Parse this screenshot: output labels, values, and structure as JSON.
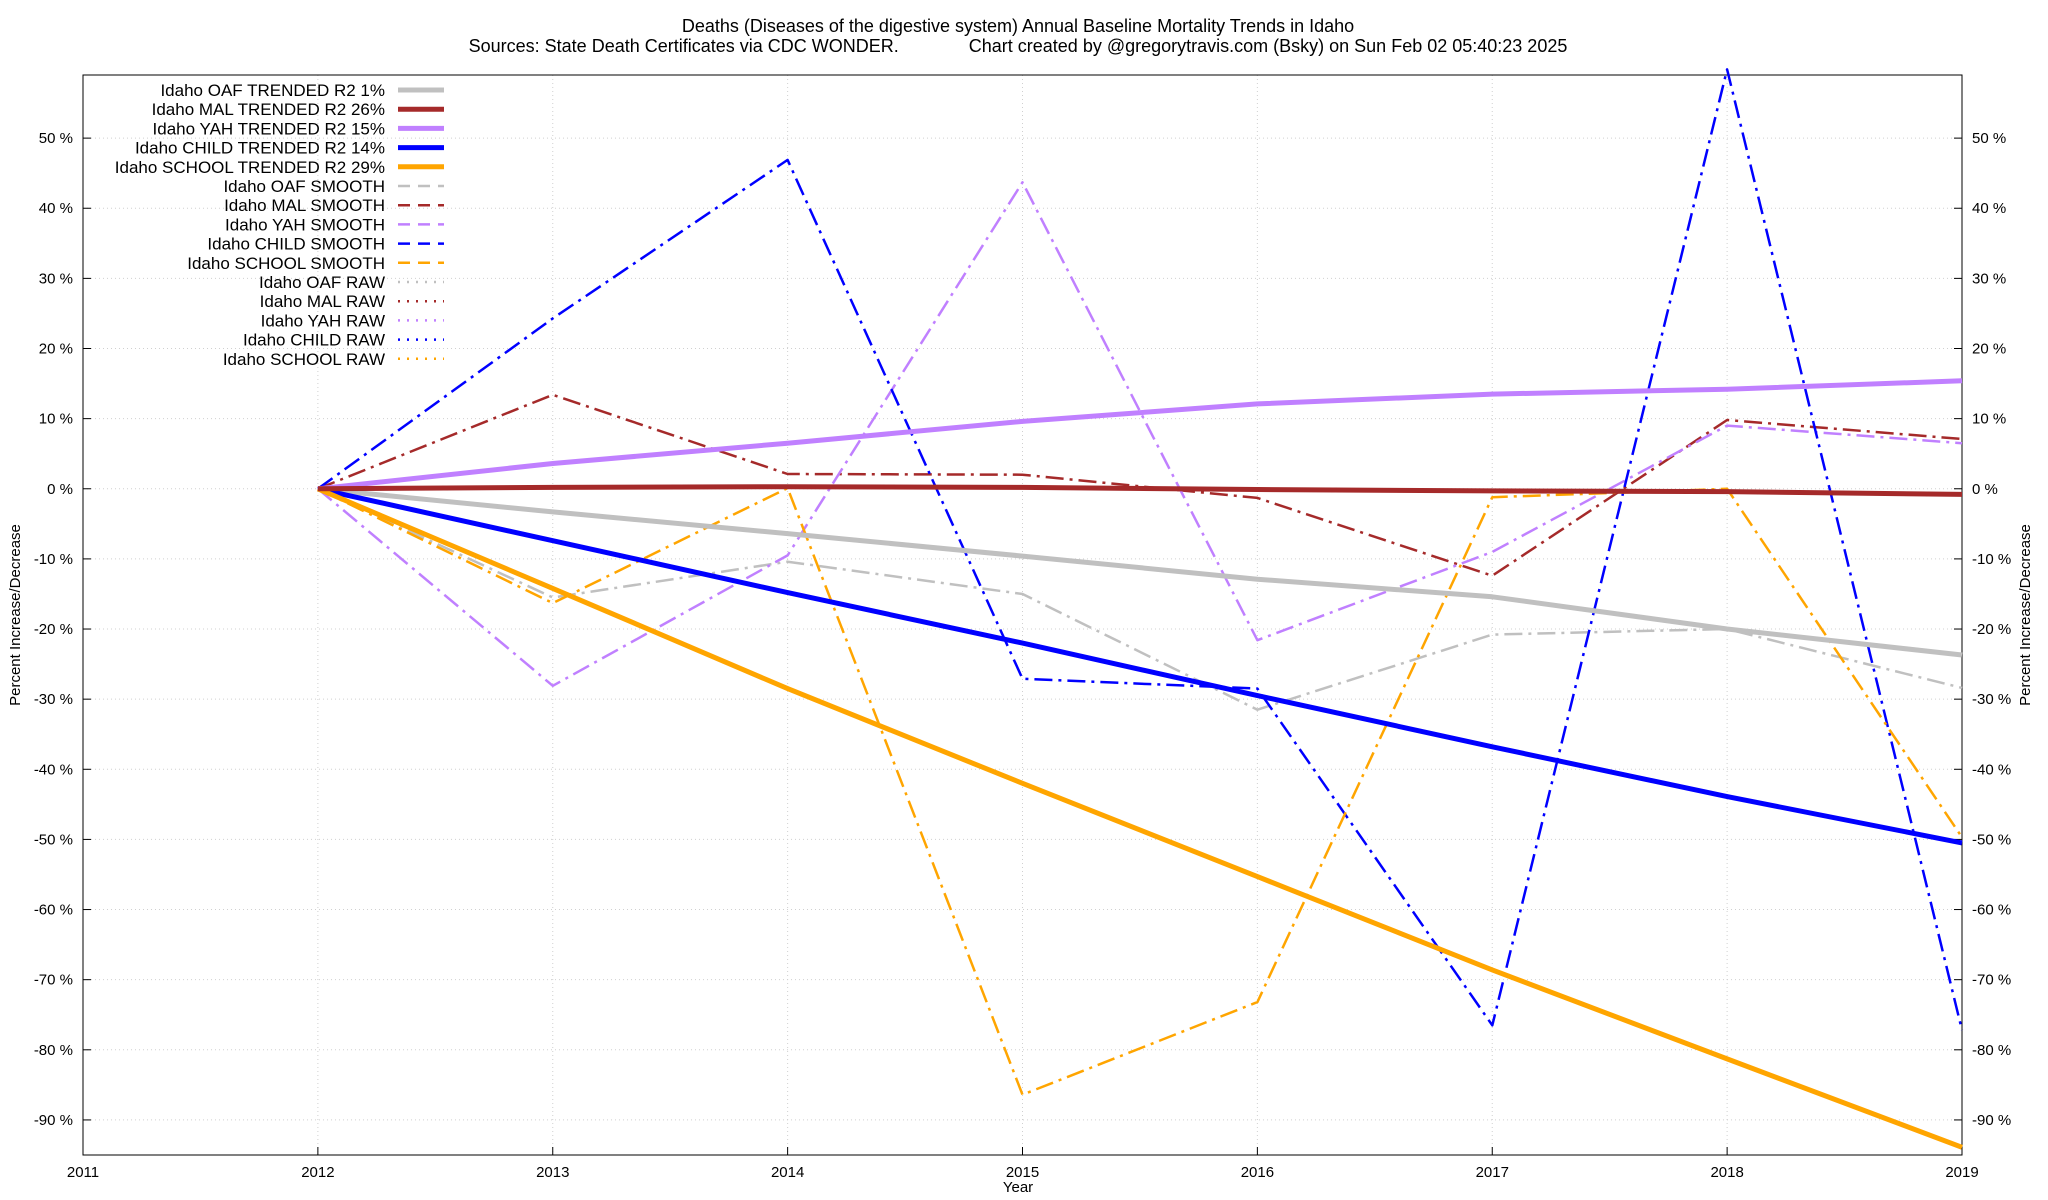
{
  "chart_data": {
    "type": "line",
    "title": "Deaths (Diseases of the digestive system)  Annual Baseline Mortality Trends in Idaho",
    "subtitle": "Sources: State Death Certificates via CDC WONDER.              Chart created by @gregorytravis.com (Bsky) on Sun Feb 02 05:40:23 2025",
    "xlabel": "Year",
    "ylabel": "Percent Increase/Decrease",
    "y2label": "Percent Increase/Decrease",
    "xlim": [
      2011,
      2019
    ],
    "ylim": [
      -95,
      59
    ],
    "x_ticks": [
      "2011",
      "2012",
      "2013",
      "2014",
      "2015",
      "2016",
      "2017",
      "2018",
      "2019"
    ],
    "y_ticks": [
      "50 %",
      "40 %",
      "30 %",
      "20 %",
      "10 %",
      "0 %",
      "-10 %",
      "-20 %",
      "-30 %",
      "-40 %",
      "-50 %",
      "-60 %",
      "-70 %",
      "-80 %",
      "-90 %"
    ],
    "grid": true,
    "legend_position": "top-left",
    "series": [
      {
        "name": "Idaho OAF TRENDED R2  1%",
        "style": "solid",
        "color": "#c0c0c0",
        "x": [
          2012,
          2013,
          2014,
          2015,
          2016,
          2017,
          2018,
          2019
        ],
        "values": [
          0,
          -3.3,
          -6.4,
          -9.6,
          -12.9,
          -15.4,
          -20.0,
          -23.7
        ]
      },
      {
        "name": "Idaho MAL TRENDED R2  26%",
        "style": "solid",
        "color": "#a52a2a",
        "x": [
          2012,
          2013,
          2014,
          2015,
          2016,
          2017,
          2018,
          2019
        ],
        "values": [
          0,
          0.2,
          0.3,
          0.2,
          -0.1,
          -0.3,
          -0.4,
          -0.8
        ]
      },
      {
        "name": "Idaho YAH TRENDED R2  15%",
        "style": "solid",
        "color": "#c080ff",
        "x": [
          2012,
          2013,
          2014,
          2015,
          2016,
          2017,
          2018,
          2019
        ],
        "values": [
          0,
          3.6,
          6.5,
          9.6,
          12.1,
          13.5,
          14.2,
          15.4
        ]
      },
      {
        "name": "Idaho CHILD TRENDED R2  14%",
        "style": "solid",
        "color": "#0000ff",
        "x": [
          2012,
          2013,
          2014,
          2015,
          2016,
          2017,
          2018,
          2019
        ],
        "values": [
          0,
          -7.4,
          -14.8,
          -22.0,
          -29.5,
          -36.8,
          -43.9,
          -50.5
        ]
      },
      {
        "name": "Idaho SCHOOL TRENDED R2  29%",
        "style": "solid",
        "color": "#ffa500",
        "x": [
          2012,
          2013,
          2014,
          2015,
          2016,
          2017,
          2018,
          2019
        ],
        "values": [
          0,
          -14.2,
          -28.5,
          -42.0,
          -55.3,
          -68.6,
          -81.3,
          -93.9
        ]
      },
      {
        "name": "Idaho OAF SMOOTH",
        "style": "dashdot",
        "color": "#c0c0c0",
        "x": [
          2012,
          2013,
          2014,
          2015,
          2016,
          2017,
          2018,
          2019
        ],
        "values": [
          0,
          -15.5,
          -10.4,
          -15.0,
          -31.5,
          -20.8,
          -20.0,
          -28.4
        ]
      },
      {
        "name": "Idaho MAL SMOOTH",
        "style": "dashdot",
        "color": "#a52a2a",
        "x": [
          2012,
          2013,
          2014,
          2015,
          2016,
          2017,
          2018,
          2019
        ],
        "values": [
          0,
          13.4,
          2.1,
          2.0,
          -1.3,
          -12.4,
          9.8,
          7.1
        ]
      },
      {
        "name": "Idaho YAH SMOOTH",
        "style": "dashdot",
        "color": "#c080ff",
        "x": [
          2012,
          2013,
          2014,
          2015,
          2016,
          2017,
          2018,
          2019
        ],
        "values": [
          0,
          -28.1,
          -9.5,
          43.7,
          -21.6,
          -9.0,
          9.0,
          6.5
        ]
      },
      {
        "name": "Idaho CHILD SMOOTH",
        "style": "dashdot",
        "color": "#0000ff",
        "x": [
          2012,
          2013,
          2014,
          2015,
          2016,
          2017,
          2018,
          2019
        ],
        "values": [
          0,
          24.3,
          46.9,
          -27.1,
          -28.5,
          -76.5,
          59.8,
          -77.2
        ]
      },
      {
        "name": "Idaho SCHOOL SMOOTH",
        "style": "dashdot",
        "color": "#ffa500",
        "x": [
          2012,
          2013,
          2014,
          2015,
          2016,
          2017,
          2018,
          2019
        ],
        "values": [
          0,
          -16.3,
          0.1,
          -86.4,
          -73.2,
          -1.2,
          0.0,
          -49.7
        ]
      },
      {
        "name": "Idaho OAF RAW",
        "style": "dotted",
        "color": "#c0c0c0",
        "x": [],
        "values": []
      },
      {
        "name": "Idaho MAL RAW",
        "style": "dotted",
        "color": "#a52a2a",
        "x": [],
        "values": []
      },
      {
        "name": "Idaho YAH RAW",
        "style": "dotted",
        "color": "#c080ff",
        "x": [],
        "values": []
      },
      {
        "name": "Idaho CHILD RAW",
        "style": "dotted",
        "color": "#0000ff",
        "x": [],
        "values": []
      },
      {
        "name": "Idaho SCHOOL RAW",
        "style": "dotted",
        "color": "#ffa500",
        "x": [],
        "values": []
      }
    ]
  }
}
